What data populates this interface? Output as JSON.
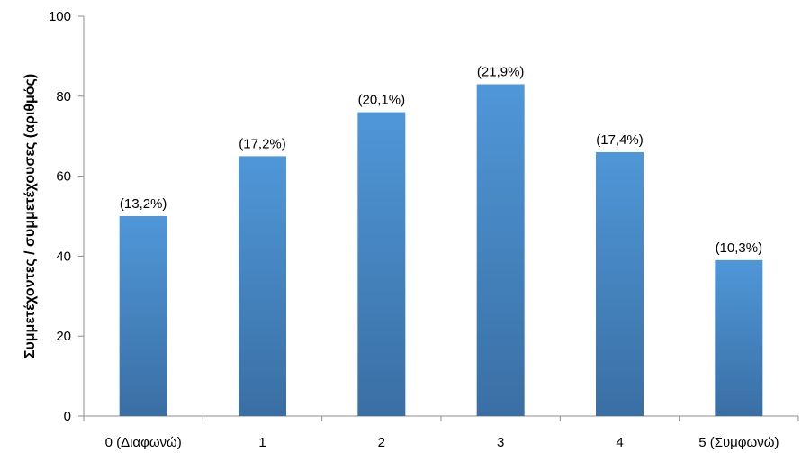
{
  "chart_data": {
    "type": "bar",
    "categories": [
      "0 (Διαφωνώ)",
      "1",
      "2",
      "3",
      "4",
      "5 (Συμφωνώ)"
    ],
    "values": [
      50,
      65,
      76,
      83,
      66,
      39
    ],
    "data_labels": [
      "(13,2%)",
      "(17,2%)",
      "(20,1%)",
      "(21,9%)",
      "(17,4%)",
      "(10,3%)"
    ],
    "title": "",
    "xlabel": "",
    "ylabel": "Συμμετέχοντες / συμμετέχουσες (αριθμός)",
    "ylim": [
      0,
      100
    ],
    "yticks": [
      "0",
      "20",
      "40",
      "60",
      "80",
      "100"
    ],
    "grid": false,
    "colors": {
      "bar_top": "#4f97d8",
      "bar_bottom": "#3a6fa4",
      "axis": "#8c8c8c"
    }
  }
}
